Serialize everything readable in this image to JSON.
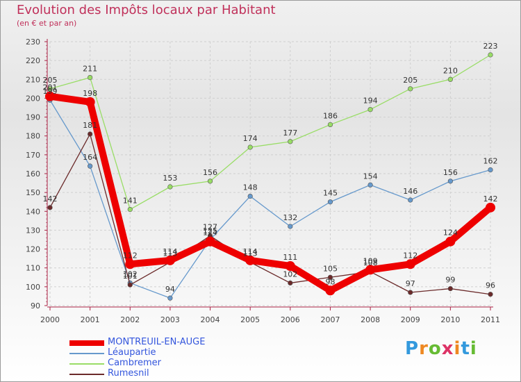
{
  "chart_data": {
    "type": "line",
    "title": "Evolution des Impôts locaux par Habitant",
    "subtitle": "(en € et par an)",
    "x": [
      "2000",
      "2001",
      "2002",
      "2003",
      "2004",
      "2005",
      "2006",
      "2007",
      "2008",
      "2009",
      "2010",
      "2011"
    ],
    "ylim": [
      90,
      230
    ],
    "yticks": [
      90,
      100,
      110,
      120,
      130,
      140,
      150,
      160,
      170,
      180,
      190,
      200,
      210,
      220,
      230
    ],
    "series": [
      {
        "name": "MONTREUIL-EN-AUGE",
        "color": "#ee0000",
        "values": [
          201,
          198,
          112,
          114,
          124,
          114,
          111,
          98,
          109,
          112,
          124,
          142
        ]
      },
      {
        "name": "Léaupartie",
        "color": "#6699cc",
        "values": [
          199,
          164,
          102,
          94,
          125,
          148,
          132,
          145,
          154,
          146,
          156,
          162
        ]
      },
      {
        "name": "Cambremer",
        "color": "#99dd66",
        "values": [
          205,
          211,
          141,
          153,
          156,
          174,
          177,
          186,
          194,
          205,
          210,
          223
        ]
      },
      {
        "name": "Rumesnil",
        "color": "#6b2a2a",
        "values": [
          142,
          181,
          101,
          113,
          127,
          113,
          102,
          105,
          108,
          97,
          99,
          96
        ]
      }
    ]
  },
  "legend": {
    "labels": [
      "MONTREUIL-EN-AUGE",
      "Léaupartie",
      "Cambremer",
      "Rumesnil"
    ],
    "label_color": "#3355dd"
  },
  "logo": {
    "text": "Proxiti"
  }
}
